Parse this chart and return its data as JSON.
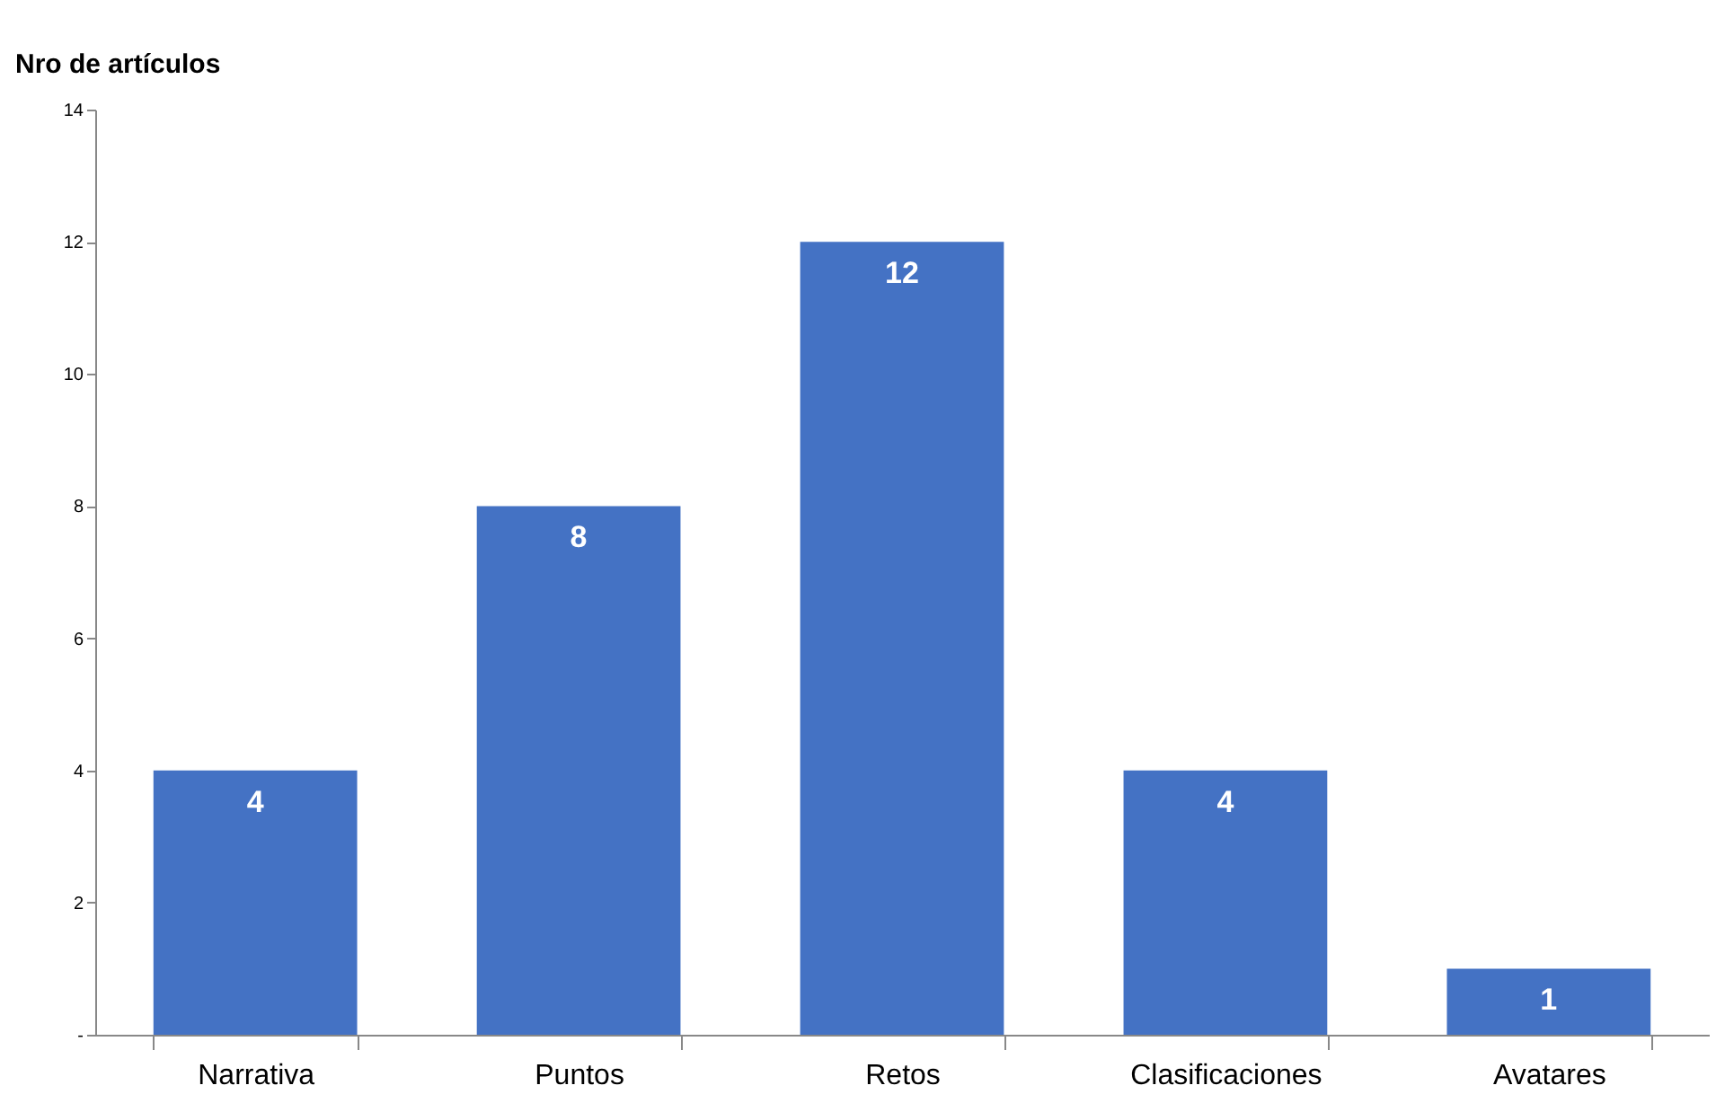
{
  "chart_data": {
    "type": "bar",
    "ylabel": "Nro de artículos",
    "categories": [
      "Narrativa",
      "Puntos",
      "Retos",
      "Clasificaciones",
      "Avatares"
    ],
    "values": [
      4,
      8,
      12,
      4,
      1
    ],
    "color": "#4472c4",
    "ylim": [
      0,
      14
    ],
    "yticks": [
      {
        "value": 0,
        "label": "-"
      },
      2,
      4,
      6,
      8,
      10,
      12,
      14
    ],
    "grid": false,
    "data_labels": true
  }
}
